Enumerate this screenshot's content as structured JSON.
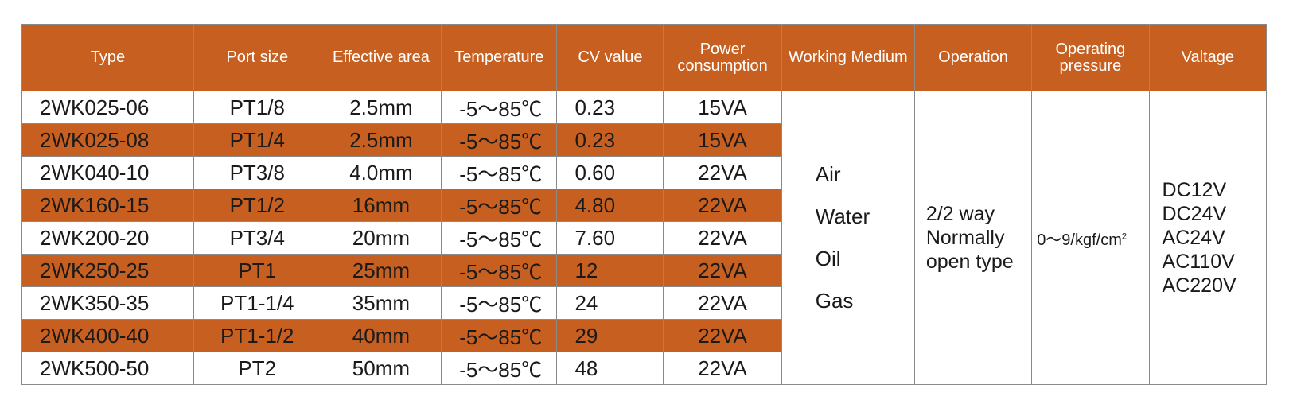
{
  "colors": {
    "header_bg": "#c65f20",
    "stripe_bg": "#c65f20",
    "header_text": "#ffffff",
    "border": "#8a8a8a"
  },
  "headers": [
    "Type",
    "Port size",
    "Effective area",
    "Temperature",
    "CV value",
    "Power consumption",
    "Working Medium",
    "Operation",
    "Operating pressure",
    "Valtage"
  ],
  "rows": [
    [
      "2WK025-06",
      "PT1/8",
      "2.5mm",
      "-5～85℃",
      "0.23",
      "15VA"
    ],
    [
      "2WK025-08",
      "PT1/4",
      "2.5mm",
      "-5～85℃",
      "0.23",
      "15VA"
    ],
    [
      "2WK040-10",
      "PT3/8",
      "4.0mm",
      "-5～85℃",
      "0.60",
      "22VA"
    ],
    [
      "2WK160-15",
      "PT1/2",
      "16mm",
      "-5～85℃",
      "4.80",
      "22VA"
    ],
    [
      "2WK200-20",
      "PT3/4",
      "20mm",
      "-5～85℃",
      "7.60",
      "22VA"
    ],
    [
      "2WK250-25",
      "PT1",
      "25mm",
      "-5～85℃",
      "12",
      "22VA"
    ],
    [
      "2WK350-35",
      "PT1-1/4",
      "35mm",
      "-5～85℃",
      "24",
      "22VA"
    ],
    [
      "2WK400-40",
      "PT1-1/2",
      "40mm",
      "-5～85℃",
      "29",
      "22VA"
    ],
    [
      "2WK500-50",
      "PT2",
      "50mm",
      "-5～85℃",
      "48",
      "22VA"
    ]
  ],
  "working_medium": [
    "Air",
    "Water",
    "Oil",
    "Gas"
  ],
  "operation": [
    "2/2 way",
    "Normally",
    "open type"
  ],
  "operating_pressure": {
    "text": "0～9/kgf/cm",
    "superscript": "2"
  },
  "voltage": [
    "DC12V",
    "DC24V",
    "AC24V",
    "AC110V",
    "AC220V"
  ]
}
